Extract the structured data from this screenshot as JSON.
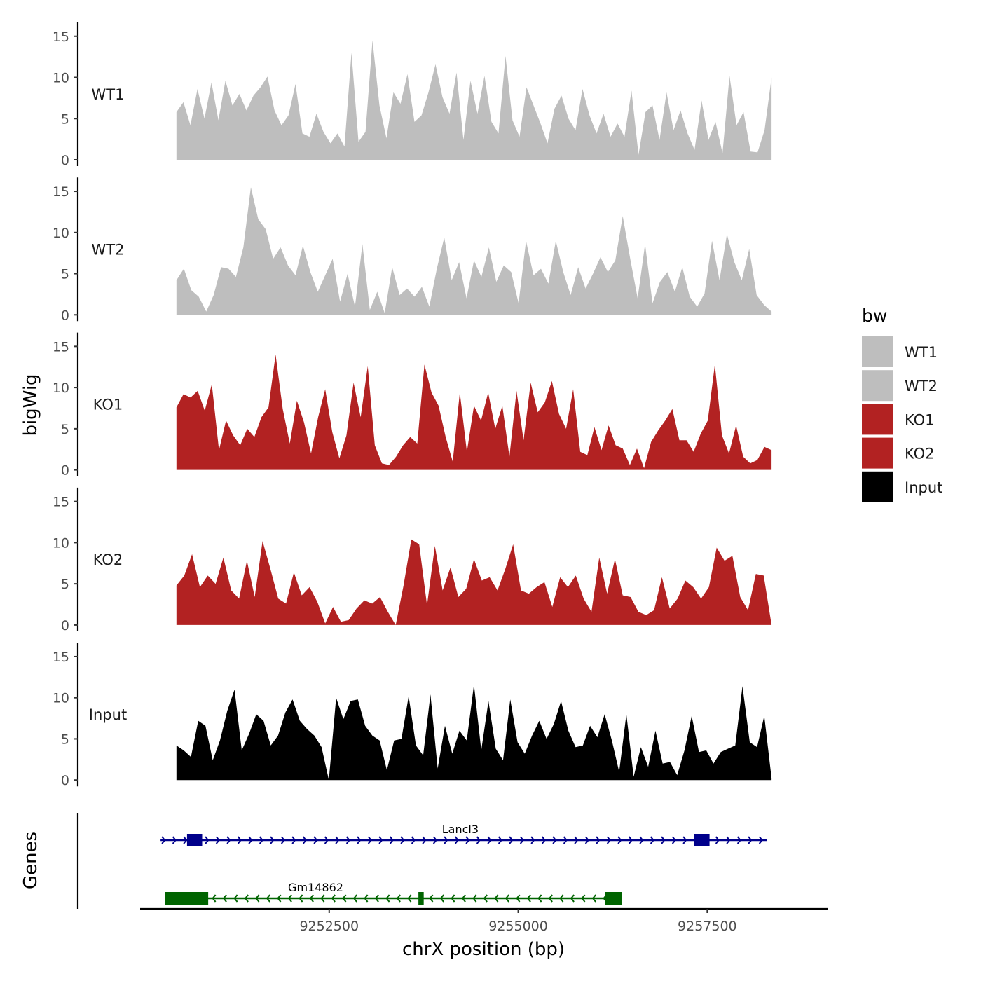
{
  "chart_data": {
    "type": "area",
    "ylabel": "bigWig",
    "xlabel": "chrX position (bp)",
    "xlim": [
      9250000,
      9259100
    ],
    "x_ticks": [
      9252500,
      9255000,
      9257500
    ],
    "x_tick_labels": [
      "9252500",
      "9255000",
      "9257500"
    ],
    "ylim": [
      0,
      16
    ],
    "y_ticks": [
      0,
      5,
      10,
      15
    ],
    "y_tick_labels": [
      "0",
      "5",
      "10",
      "15"
    ],
    "region_start": 9250480,
    "region_end": 9258350,
    "legend_title": "bw",
    "legend_position": "right",
    "genes_label": "Genes",
    "series": [
      {
        "name": "WT1",
        "color": "#bebebe",
        "values": [
          5.8,
          7.0,
          4.2,
          8.6,
          5.0,
          9.4,
          4.8,
          9.6,
          6.6,
          8.0,
          6.0,
          7.8,
          8.8,
          10.1,
          6.0,
          4.2,
          5.4,
          9.2,
          3.2,
          2.8,
          5.6,
          3.4,
          2.0,
          3.2,
          1.6,
          13.0,
          2.2,
          3.4,
          14.5,
          6.6,
          2.6,
          8.2,
          6.8,
          10.4,
          4.6,
          5.4,
          8.2,
          11.6,
          7.6,
          5.6,
          10.6,
          2.4,
          9.6,
          5.6,
          10.2,
          4.6,
          3.2,
          12.6,
          4.8,
          2.8,
          8.8,
          6.6,
          4.4,
          2.0,
          6.2,
          7.8,
          5.0,
          3.6,
          8.6,
          5.4,
          3.2,
          5.6,
          2.8,
          4.4,
          2.8,
          8.4,
          0.6,
          5.8,
          6.6,
          2.4,
          8.2,
          3.6,
          6.0,
          3.2,
          1.2,
          7.2,
          2.4,
          4.6,
          0.8,
          10.2,
          4.2,
          5.8,
          1.0,
          0.9,
          3.6,
          10.0
        ]
      },
      {
        "name": "WT2",
        "color": "#bebebe",
        "values": [
          4.2,
          5.6,
          3.0,
          2.2,
          0.4,
          2.4,
          5.8,
          5.6,
          4.6,
          8.2,
          15.5,
          11.6,
          10.4,
          6.8,
          8.2,
          6.0,
          4.8,
          8.4,
          5.2,
          2.8,
          4.8,
          6.8,
          1.6,
          5.0,
          1.0,
          8.6,
          0.6,
          2.8,
          0.2,
          5.8,
          2.4,
          3.2,
          2.2,
          3.4,
          1.0,
          5.6,
          9.4,
          4.2,
          6.4,
          2.0,
          6.6,
          4.6,
          8.2,
          4.0,
          6.0,
          5.2,
          1.4,
          9.0,
          4.8,
          5.6,
          3.8,
          9.0,
          5.2,
          2.4,
          5.8,
          3.2,
          5.0,
          7.0,
          5.2,
          6.6,
          12.0,
          6.8,
          2.0,
          8.6,
          1.4,
          4.0,
          5.2,
          2.8,
          5.8,
          2.2,
          1.0,
          2.6,
          9.0,
          4.2,
          9.8,
          6.4,
          4.2,
          8.0,
          2.4,
          1.2,
          0.4
        ]
      },
      {
        "name": "KO1",
        "color": "#b22222",
        "values": [
          7.6,
          9.2,
          8.8,
          9.6,
          7.2,
          10.4,
          2.4,
          6.0,
          4.2,
          3.0,
          5.0,
          4.0,
          6.4,
          7.6,
          14.0,
          7.4,
          3.2,
          8.4,
          5.8,
          2.0,
          6.4,
          9.8,
          4.6,
          1.4,
          4.2,
          10.6,
          6.4,
          12.6,
          3.0,
          0.8,
          0.6,
          1.6,
          3.0,
          4.0,
          3.2,
          12.8,
          9.4,
          7.8,
          4.0,
          1.0,
          9.4,
          2.2,
          7.8,
          6.0,
          9.4,
          5.0,
          7.8,
          1.6,
          9.6,
          3.6,
          10.6,
          7.0,
          8.2,
          10.8,
          6.8,
          5.0,
          9.8,
          2.2,
          1.8,
          5.2,
          2.4,
          5.4,
          3.0,
          2.6,
          0.6,
          2.6,
          0.2,
          3.4,
          4.8,
          6.0,
          7.4,
          3.6,
          3.6,
          2.2,
          4.4,
          6.0,
          12.8,
          4.2,
          2.0,
          5.4,
          1.6,
          0.8,
          1.2,
          2.8,
          2.4
        ]
      },
      {
        "name": "KO2",
        "color": "#b22222",
        "values": [
          4.8,
          6.0,
          8.6,
          4.6,
          6.0,
          5.0,
          8.2,
          4.2,
          3.2,
          7.8,
          3.4,
          10.2,
          6.8,
          3.2,
          2.6,
          6.4,
          3.6,
          4.6,
          2.8,
          0.2,
          2.2,
          0.4,
          0.6,
          2.0,
          3.0,
          2.6,
          3.4,
          1.6,
          0.0,
          4.8,
          10.4,
          9.8,
          2.4,
          9.6,
          4.2,
          7.0,
          3.4,
          4.4,
          8.0,
          5.4,
          5.8,
          4.2,
          6.8,
          9.8,
          4.2,
          3.8,
          4.6,
          5.2,
          2.2,
          5.8,
          4.6,
          6.0,
          3.2,
          1.6,
          8.2,
          3.8,
          8.0,
          3.6,
          3.4,
          1.6,
          1.2,
          1.8,
          5.8,
          2.0,
          3.2,
          5.4,
          4.6,
          3.2,
          4.6,
          9.4,
          7.8,
          8.4,
          3.4,
          1.8,
          6.2,
          6.0,
          0.0
        ]
      },
      {
        "name": "Input",
        "color": "#000000",
        "values": [
          4.2,
          3.6,
          2.8,
          7.2,
          6.6,
          2.4,
          4.8,
          8.4,
          11.0,
          3.6,
          5.6,
          8.0,
          7.2,
          4.2,
          5.4,
          8.2,
          9.8,
          7.2,
          6.2,
          5.4,
          4.0,
          0.0,
          10.0,
          7.4,
          9.6,
          9.8,
          6.6,
          5.4,
          4.8,
          1.2,
          4.8,
          5.0,
          10.2,
          4.2,
          3.0,
          10.4,
          1.4,
          6.6,
          3.2,
          6.0,
          4.8,
          11.6,
          3.6,
          9.6,
          3.8,
          2.4,
          9.8,
          4.6,
          3.2,
          5.4,
          7.2,
          5.0,
          6.8,
          9.6,
          6.0,
          4.0,
          4.2,
          6.6,
          5.2,
          8.0,
          4.8,
          1.0,
          8.0,
          0.4,
          4.0,
          1.6,
          6.0,
          2.0,
          2.2,
          0.6,
          3.6,
          7.8,
          3.4,
          3.6,
          2.0,
          3.4,
          3.8,
          4.2,
          11.4,
          4.6,
          4.0,
          7.8,
          0.2
        ]
      }
    ],
    "genes": [
      {
        "name": "Lancl3",
        "strand": "+",
        "color": "#00008b",
        "start": 9250270,
        "end": 9258290,
        "exons": [
          [
            9250620,
            9250820
          ],
          [
            9257330,
            9257530
          ]
        ]
      },
      {
        "name": "Gm14862",
        "strand": "-",
        "color": "#006400",
        "start": 9250330,
        "end": 9256370,
        "exons": [
          [
            9250330,
            9250900
          ],
          [
            9253680,
            9253750
          ],
          [
            9256150,
            9256370
          ]
        ]
      }
    ]
  }
}
